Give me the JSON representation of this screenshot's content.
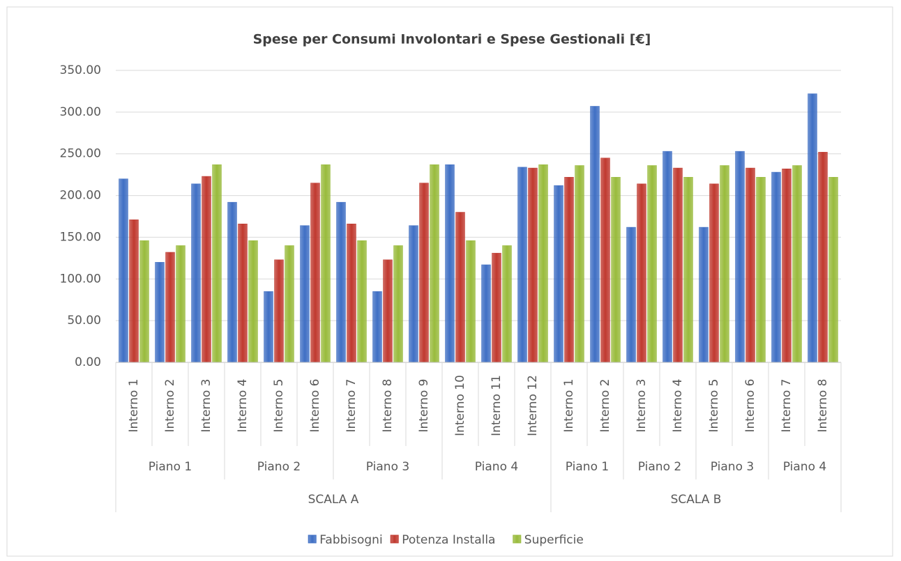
{
  "chart_data": {
    "type": "bar",
    "title": "Spese per Consumi Involontari e Spese Gestionali [€]",
    "categories": [
      "Interno 1",
      "Interno 2",
      "Interno 3",
      "Interno 4",
      "Interno 5",
      "Interno 6",
      "Interno 7",
      "Interno 8",
      "Interno 9",
      "Interno 10",
      "Interno 11",
      "Interno 12",
      "Interno 1",
      "Interno 2",
      "Interno 3",
      "Interno 4",
      "Interno 5",
      "Interno 6",
      "Interno 7",
      "Interno 8"
    ],
    "piano": [
      "Piano 1",
      "Piano 1",
      "Piano 1",
      "Piano 2",
      "Piano 2",
      "Piano 2",
      "Piano 3",
      "Piano 3",
      "Piano 3",
      "Piano 4",
      "Piano 4",
      "Piano 4",
      "Piano 1",
      "Piano 1",
      "Piano 2",
      "Piano 2",
      "Piano 3",
      "Piano 3",
      "Piano 4",
      "Piano 4"
    ],
    "scala": [
      "SCALA A",
      "SCALA A",
      "SCALA A",
      "SCALA A",
      "SCALA A",
      "SCALA A",
      "SCALA A",
      "SCALA A",
      "SCALA A",
      "SCALA A",
      "SCALA A",
      "SCALA A",
      "SCALA B",
      "SCALA B",
      "SCALA B",
      "SCALA B",
      "SCALA B",
      "SCALA B",
      "SCALA B",
      "SCALA B"
    ],
    "series": [
      {
        "name": "Fabbisogni",
        "color": "#3f6fc4",
        "values": [
          220,
          120,
          214,
          192,
          85,
          164,
          192,
          85,
          164,
          237,
          117,
          234,
          212,
          307,
          162,
          253,
          162,
          253,
          228,
          322
        ]
      },
      {
        "name": "Potenza Installa",
        "color": "#c0392f",
        "values": [
          171,
          132,
          223,
          166,
          123,
          215,
          166,
          123,
          215,
          180,
          131,
          233,
          222,
          245,
          214,
          233,
          214,
          233,
          232,
          252
        ]
      },
      {
        "name": "Superficie",
        "color": "#99bb3c",
        "values": [
          146,
          140,
          237,
          146,
          140,
          237,
          146,
          140,
          237,
          146,
          140,
          237,
          236,
          222,
          236,
          222,
          236,
          222,
          236,
          222
        ]
      }
    ],
    "ylim": [
      0,
      350
    ],
    "yticks": [
      {
        "value": 0,
        "label": "0.00"
      },
      {
        "value": 50,
        "label": "50.00"
      },
      {
        "value": 100,
        "label": "100.00"
      },
      {
        "value": 150,
        "label": "150.00"
      },
      {
        "value": 200,
        "label": "200.00"
      },
      {
        "value": 250,
        "label": "250.00"
      },
      {
        "value": 300,
        "label": "300.00"
      },
      {
        "value": 350,
        "label": "350.00"
      }
    ],
    "grid": true,
    "legend": "bottom"
  }
}
